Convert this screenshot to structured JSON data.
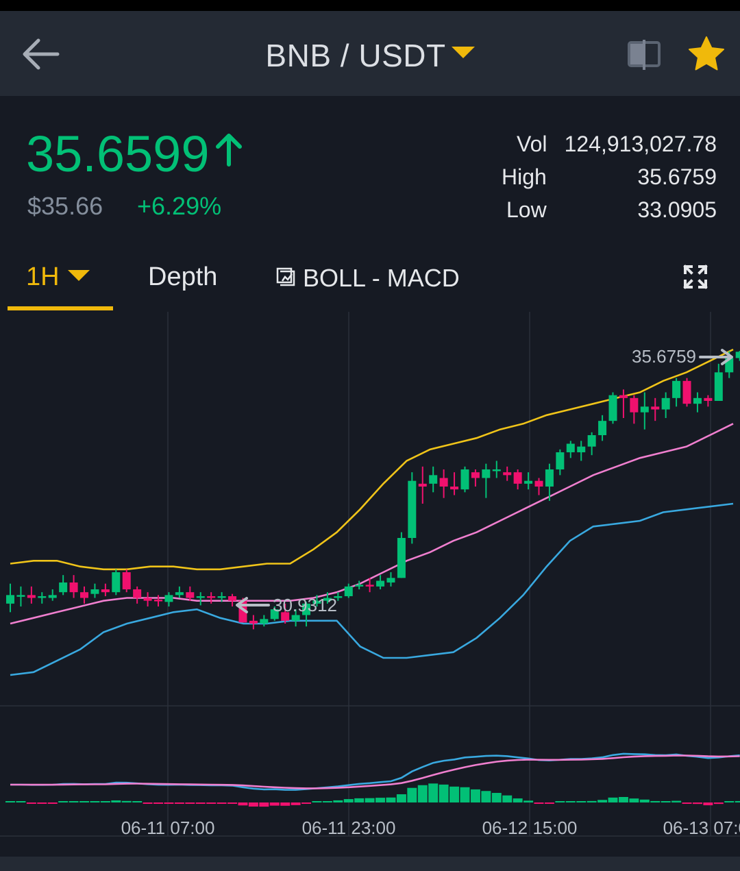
{
  "header": {
    "pair": "BNB / USDT"
  },
  "ticker": {
    "last_price": "35.6599",
    "usd_price": "$35.66",
    "change_pct": "+6.29%",
    "vol_label": "Vol",
    "vol_value": "124,913,027.78",
    "high_label": "High",
    "high_value": "35.6759",
    "low_label": "Low",
    "low_value": "33.0905"
  },
  "tabs": {
    "interval": "1H",
    "depth": "Depth",
    "indicators": "BOLL - MACD"
  },
  "colors": {
    "up": "#02c076",
    "down": "#f0116e",
    "accent": "#f0b90b",
    "boll_upper": "#f0c419",
    "boll_mid": "#f07fcf",
    "boll_lower": "#39a9e0",
    "dif": "#39a9e0",
    "dea": "#f07fcf"
  },
  "chart_data": {
    "type": "candlestick",
    "interval": "1H",
    "x_tick_labels": [
      "06-11 07:00",
      "06-11 23:00",
      "06-12 15:00",
      "06-13 07:00"
    ],
    "high_marker": "35.6759",
    "low_marker": "30.9312",
    "indicators": [
      "BOLL",
      "MACD"
    ],
    "candles": [
      [
        31.25,
        31.4,
        31.6,
        31.1
      ],
      [
        31.38,
        31.4,
        31.55,
        31.2
      ],
      [
        31.4,
        31.35,
        31.55,
        31.25
      ],
      [
        31.35,
        31.38,
        31.45,
        31.25
      ],
      [
        31.35,
        31.4,
        31.5,
        31.3
      ],
      [
        31.45,
        31.62,
        31.75,
        31.4
      ],
      [
        31.62,
        31.45,
        31.75,
        31.35
      ],
      [
        31.45,
        31.35,
        31.55,
        31.25
      ],
      [
        31.42,
        31.5,
        31.6,
        31.35
      ],
      [
        31.5,
        31.45,
        31.6,
        31.38
      ],
      [
        31.45,
        31.8,
        31.85,
        31.4
      ],
      [
        31.8,
        31.5,
        31.85,
        31.45
      ],
      [
        31.5,
        31.35,
        31.55,
        31.25
      ],
      [
        31.35,
        31.3,
        31.45,
        31.2
      ],
      [
        31.32,
        31.3,
        31.4,
        31.2
      ],
      [
        31.28,
        31.4,
        31.45,
        31.2
      ],
      [
        31.4,
        31.45,
        31.55,
        31.35
      ],
      [
        31.45,
        31.35,
        31.55,
        31.3
      ],
      [
        31.35,
        31.38,
        31.45,
        31.22
      ],
      [
        31.38,
        31.35,
        31.45,
        31.25
      ],
      [
        31.35,
        31.38,
        31.45,
        31.28
      ],
      [
        31.38,
        31.3,
        31.42,
        31.2
      ],
      [
        31.3,
        30.92,
        31.35,
        30.92
      ],
      [
        30.95,
        30.9,
        31.05,
        30.8
      ],
      [
        30.9,
        30.98,
        31.05,
        30.85
      ],
      [
        30.98,
        31.15,
        31.2,
        30.95
      ],
      [
        31.1,
        30.95,
        31.25,
        30.9
      ],
      [
        30.95,
        31.05,
        31.15,
        30.85
      ],
      [
        31.05,
        31.25,
        31.28,
        30.85
      ],
      [
        31.25,
        31.3,
        31.4,
        31.2
      ],
      [
        31.3,
        31.35,
        31.45,
        31.25
      ],
      [
        31.35,
        31.38,
        31.45,
        31.3
      ],
      [
        31.38,
        31.55,
        31.6,
        31.35
      ],
      [
        31.55,
        31.58,
        31.65,
        31.5
      ],
      [
        31.58,
        31.55,
        31.7,
        31.45
      ],
      [
        31.55,
        31.65,
        31.75,
        31.5
      ],
      [
        31.62,
        31.7,
        31.8,
        31.55
      ],
      [
        31.7,
        32.4,
        32.5,
        31.7
      ],
      [
        32.4,
        33.4,
        33.55,
        32.3
      ],
      [
        33.35,
        33.3,
        33.65,
        33.0
      ],
      [
        33.35,
        33.5,
        33.65,
        33.2
      ],
      [
        33.45,
        33.3,
        33.6,
        33.1
      ],
      [
        33.3,
        33.25,
        33.55,
        33.15
      ],
      [
        33.25,
        33.6,
        33.65,
        33.2
      ],
      [
        33.55,
        33.45,
        33.6,
        33.3
      ],
      [
        33.45,
        33.6,
        33.7,
        33.1
      ],
      [
        33.6,
        33.6,
        33.75,
        33.45
      ],
      [
        33.55,
        33.5,
        33.65,
        33.4
      ],
      [
        33.55,
        33.35,
        33.6,
        33.25
      ],
      [
        33.35,
        33.4,
        33.55,
        33.25
      ],
      [
        33.4,
        33.3,
        33.45,
        33.15
      ],
      [
        33.3,
        33.6,
        33.7,
        33.05
      ],
      [
        33.6,
        33.9,
        33.95,
        33.5
      ],
      [
        33.9,
        34.05,
        34.1,
        33.8
      ],
      [
        33.9,
        34.0,
        34.1,
        33.75
      ],
      [
        34.0,
        34.2,
        34.25,
        33.85
      ],
      [
        34.2,
        34.45,
        34.55,
        34.1
      ],
      [
        34.45,
        34.9,
        34.95,
        34.4
      ],
      [
        34.9,
        34.85,
        35.0,
        34.5
      ],
      [
        34.85,
        34.6,
        34.9,
        34.4
      ],
      [
        34.6,
        34.7,
        34.95,
        34.3
      ],
      [
        34.7,
        34.65,
        34.85,
        34.45
      ],
      [
        34.65,
        34.85,
        34.95,
        34.5
      ],
      [
        34.85,
        35.15,
        35.2,
        34.7
      ],
      [
        35.15,
        34.75,
        35.2,
        34.7
      ],
      [
        34.75,
        34.85,
        34.95,
        34.6
      ],
      [
        34.85,
        34.8,
        34.9,
        34.7
      ],
      [
        34.8,
        35.3,
        35.45,
        34.8
      ],
      [
        35.3,
        35.55,
        35.67,
        35.2
      ],
      [
        35.55,
        35.66,
        35.6759,
        35.5
      ]
    ],
    "boll_upper": [
      31.95,
      32.0,
      32.0,
      31.9,
      31.85,
      31.85,
      31.9,
      31.9,
      31.85,
      31.85,
      31.9,
      31.95,
      31.95,
      32.2,
      32.5,
      32.9,
      33.35,
      33.75,
      33.95,
      34.05,
      34.15,
      34.3,
      34.4,
      34.55,
      34.65,
      34.75,
      34.85,
      34.95,
      35.15,
      35.3,
      35.5,
      35.7
    ],
    "boll_mid": [
      30.9,
      31.0,
      31.1,
      31.2,
      31.3,
      31.35,
      31.35,
      31.35,
      31.3,
      31.3,
      31.3,
      31.3,
      31.3,
      31.35,
      31.45,
      31.6,
      31.8,
      32.0,
      32.15,
      32.35,
      32.5,
      32.7,
      32.9,
      33.1,
      33.3,
      33.5,
      33.65,
      33.8,
      33.9,
      34.0,
      34.2,
      34.4
    ],
    "boll_lower": [
      30.0,
      30.05,
      30.25,
      30.45,
      30.75,
      30.9,
      31.0,
      31.1,
      31.15,
      31.0,
      30.9,
      30.9,
      30.95,
      30.95,
      30.95,
      30.5,
      30.3,
      30.3,
      30.35,
      30.4,
      30.65,
      31.0,
      31.4,
      31.9,
      32.35,
      32.6,
      32.65,
      32.7,
      32.85,
      32.9,
      32.95,
      33.0
    ]
  }
}
